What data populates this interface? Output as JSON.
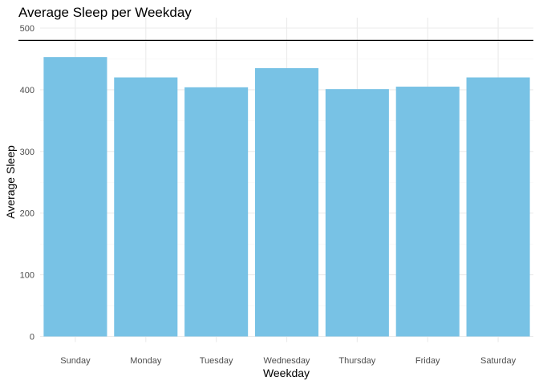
{
  "chart_data": {
    "type": "bar",
    "title": "Average Sleep per Weekday",
    "xlabel": "Weekday",
    "ylabel": "Average Sleep",
    "categories": [
      "Sunday",
      "Monday",
      "Tuesday",
      "Wednesday",
      "Thursday",
      "Friday",
      "Saturday"
    ],
    "values": [
      453,
      420,
      404,
      435,
      401,
      405,
      420
    ],
    "ylim": [
      0,
      500
    ],
    "yticks": [
      0,
      100,
      200,
      300,
      400,
      500
    ],
    "reference_line": 480,
    "grid": true,
    "legend": "none",
    "colors": {
      "bar": "#78c2e5",
      "grid_major": "#ebebeb",
      "grid_minor": "#f5f5f5",
      "reference_line": "#000000"
    }
  }
}
